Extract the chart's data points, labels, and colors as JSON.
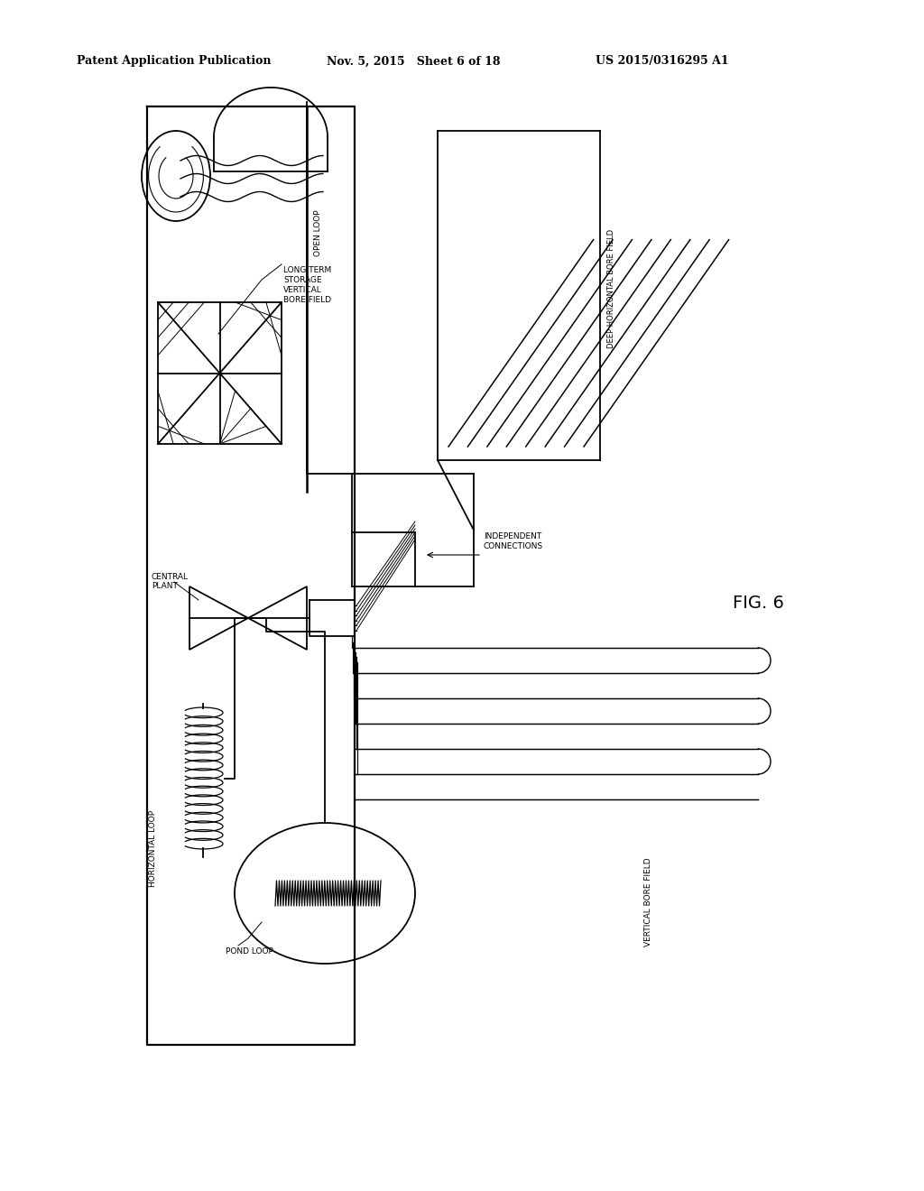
{
  "header_left": "Patent Application Publication",
  "header_mid": "Nov. 5, 2015   Sheet 6 of 18",
  "header_right": "US 2015/0316295 A1",
  "bg_color": "#ffffff",
  "lc": "#000000",
  "fig_label": "FIG. 6",
  "label_long_term": "LONG TERM\nSTORAGE\nVERTICAL\nBORE FIELD",
  "label_open_loop": "OPEN LOOP",
  "label_central_plant": "CENTRAL\nPLANT",
  "label_independent": "INDEPENDENT\nCONNECTIONS",
  "label_deep_horiz": "DEEP HORIZONTAL BORE FIELD",
  "label_horiz_loop": "HORIZONTAL LOOP",
  "label_pond_loop": "POND LOOP",
  "label_vert_bore": "VERTICAL BORE FIELD"
}
